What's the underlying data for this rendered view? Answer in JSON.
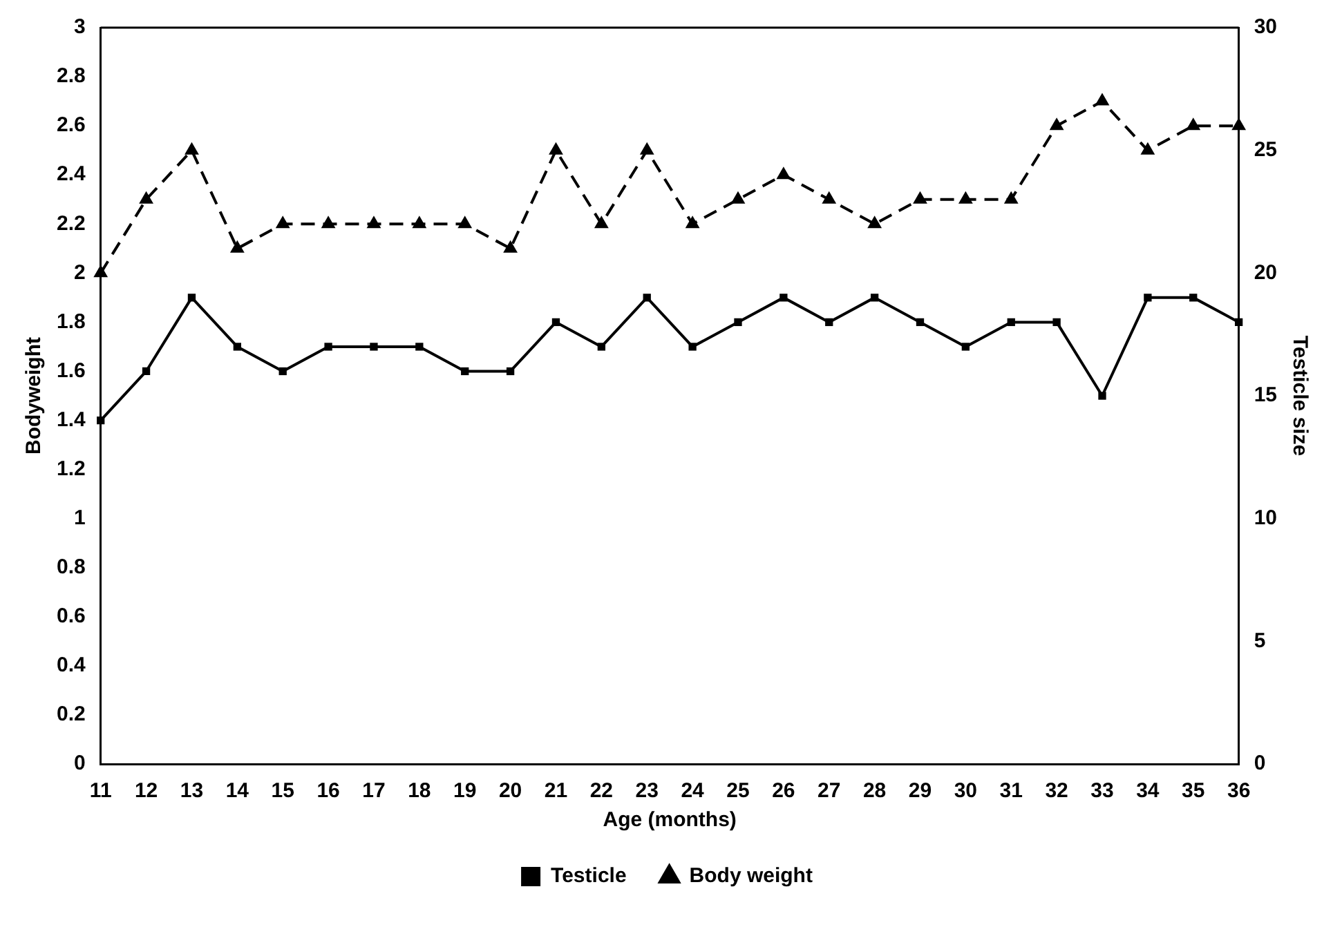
{
  "chart_data": {
    "type": "line",
    "xlabel": "Age (months)",
    "ylabel": "Bodyweight",
    "y2label": "Testicle size",
    "categories": [
      "11",
      "12",
      "13",
      "14",
      "15",
      "16",
      "17",
      "18",
      "19",
      "20",
      "21",
      "22",
      "23",
      "24",
      "25",
      "26",
      "27",
      "28",
      "29",
      "30",
      "31",
      "32",
      "33",
      "34",
      "35",
      "36"
    ],
    "series": [
      {
        "name": "Testicle",
        "color": "#000000",
        "axis": "y2",
        "marker": "square",
        "line_style": "solid",
        "values": [
          14,
          16,
          19,
          17,
          16,
          17,
          17,
          17,
          16,
          16,
          18,
          17,
          19,
          17,
          18,
          19,
          18,
          19,
          18,
          17,
          18,
          18,
          15,
          19,
          19,
          18
        ]
      },
      {
        "name": "Body weight",
        "color": "#000000",
        "axis": "y",
        "marker": "triangle",
        "line_style": "dashed",
        "values": [
          2.0,
          2.3,
          2.5,
          2.1,
          2.2,
          2.2,
          2.2,
          2.2,
          2.2,
          2.1,
          2.5,
          2.2,
          2.5,
          2.2,
          2.3,
          2.4,
          2.3,
          2.2,
          2.3,
          2.3,
          2.3,
          2.6,
          2.7,
          2.5,
          2.6,
          2.6
        ]
      }
    ],
    "ylim": [
      0,
      3
    ],
    "yticks": [
      0,
      0.2,
      0.4,
      0.6,
      0.8,
      1,
      1.2,
      1.4,
      1.6,
      1.8,
      2,
      2.2,
      2.4,
      2.6,
      2.8,
      3
    ],
    "y2lim": [
      0,
      30
    ],
    "y2ticks": [
      0,
      5,
      10,
      15,
      20,
      25,
      30
    ],
    "grid": false,
    "legend": "bottom"
  }
}
